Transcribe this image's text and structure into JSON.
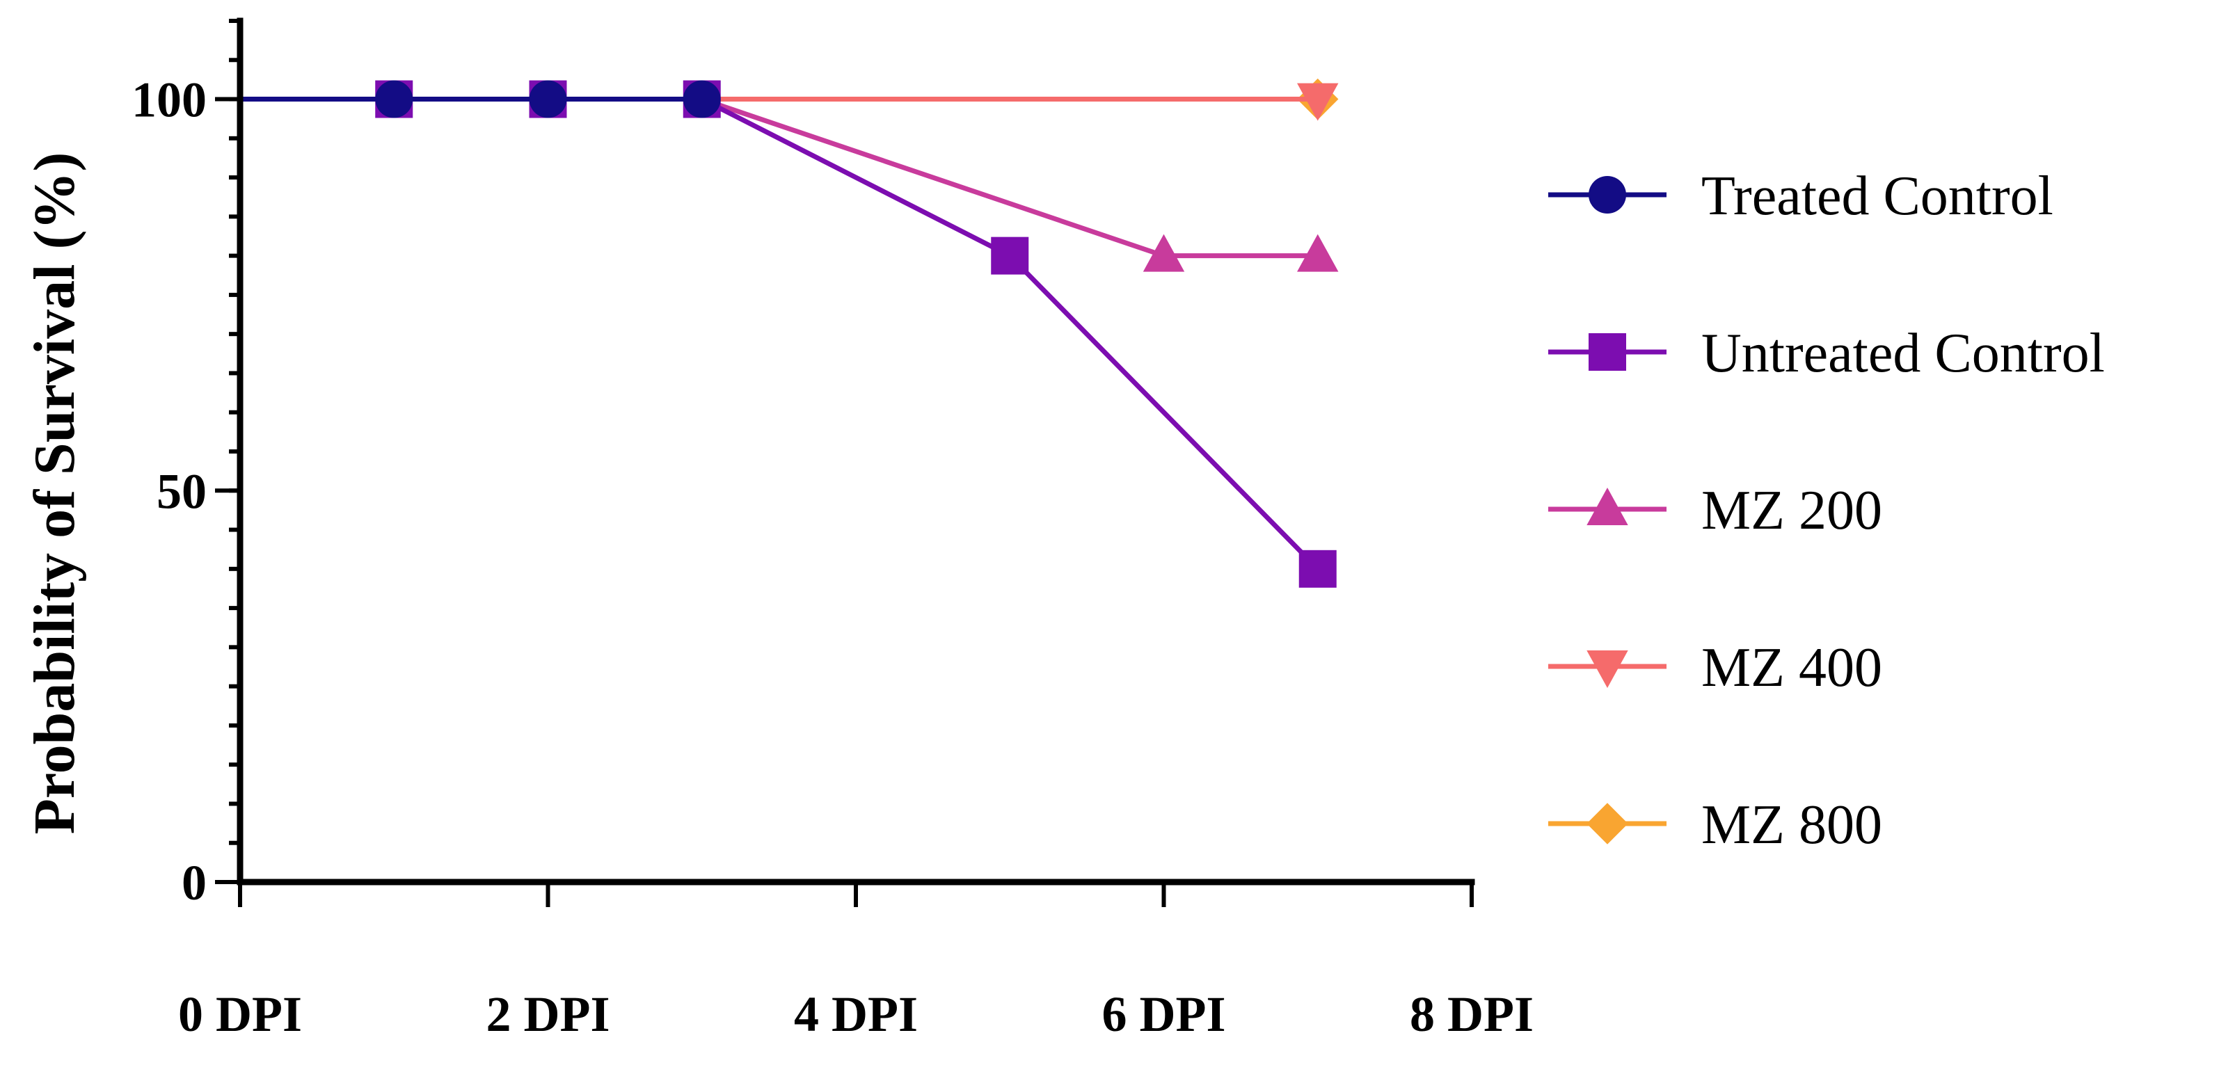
{
  "chart_data": {
    "type": "line",
    "title": "",
    "xlabel": "",
    "ylabel": "Probability of Survival (%)",
    "xlim": [
      0,
      8
    ],
    "ylim": [
      0,
      110
    ],
    "x_ticks": [
      {
        "value": 0,
        "label": "0 DPI"
      },
      {
        "value": 2,
        "label": "2 DPI"
      },
      {
        "value": 4,
        "label": "4 DPI"
      },
      {
        "value": 6,
        "label": "6 DPI"
      },
      {
        "value": 8,
        "label": "8 DPI"
      }
    ],
    "y_ticks": [
      {
        "value": 0,
        "label": "0"
      },
      {
        "value": 50,
        "label": "50"
      },
      {
        "value": 100,
        "label": "100"
      }
    ],
    "y_minor_step": 5,
    "grid": false,
    "legend_position": "right",
    "series": [
      {
        "name": "MZ 800",
        "color": "#F9A531",
        "marker": "diamond",
        "line": [
          [
            0,
            100
          ],
          [
            7,
            100
          ]
        ],
        "points": [
          [
            7,
            100
          ]
        ]
      },
      {
        "name": "MZ 400",
        "color": "#F56B6B",
        "marker": "triangle-down",
        "line": [
          [
            0,
            100
          ],
          [
            7,
            100
          ]
        ],
        "points": [
          [
            7,
            100
          ]
        ]
      },
      {
        "name": "MZ 200",
        "color": "#C83B9C",
        "marker": "triangle-up",
        "line": [
          [
            0,
            100
          ],
          [
            3,
            100
          ],
          [
            6,
            80
          ],
          [
            7,
            80
          ]
        ],
        "points": [
          [
            6,
            80
          ],
          [
            7,
            80
          ]
        ]
      },
      {
        "name": "Untreated Control",
        "color": "#7C0DB0",
        "marker": "square",
        "line": [
          [
            0,
            100
          ],
          [
            3,
            100
          ],
          [
            5,
            80
          ],
          [
            7,
            40
          ]
        ],
        "points": [
          [
            1,
            100
          ],
          [
            2,
            100
          ],
          [
            3,
            100
          ],
          [
            5,
            80
          ],
          [
            7,
            40
          ]
        ]
      },
      {
        "name": "Treated Control",
        "color": "#130C85",
        "marker": "circle",
        "line": [
          [
            0,
            100
          ],
          [
            3,
            100
          ]
        ],
        "points": [
          [
            1,
            100
          ],
          [
            2,
            100
          ],
          [
            3,
            100
          ]
        ]
      }
    ],
    "legend_order": [
      "Treated Control",
      "Untreated Control",
      "MZ 200",
      "MZ 400",
      "MZ 800"
    ]
  }
}
